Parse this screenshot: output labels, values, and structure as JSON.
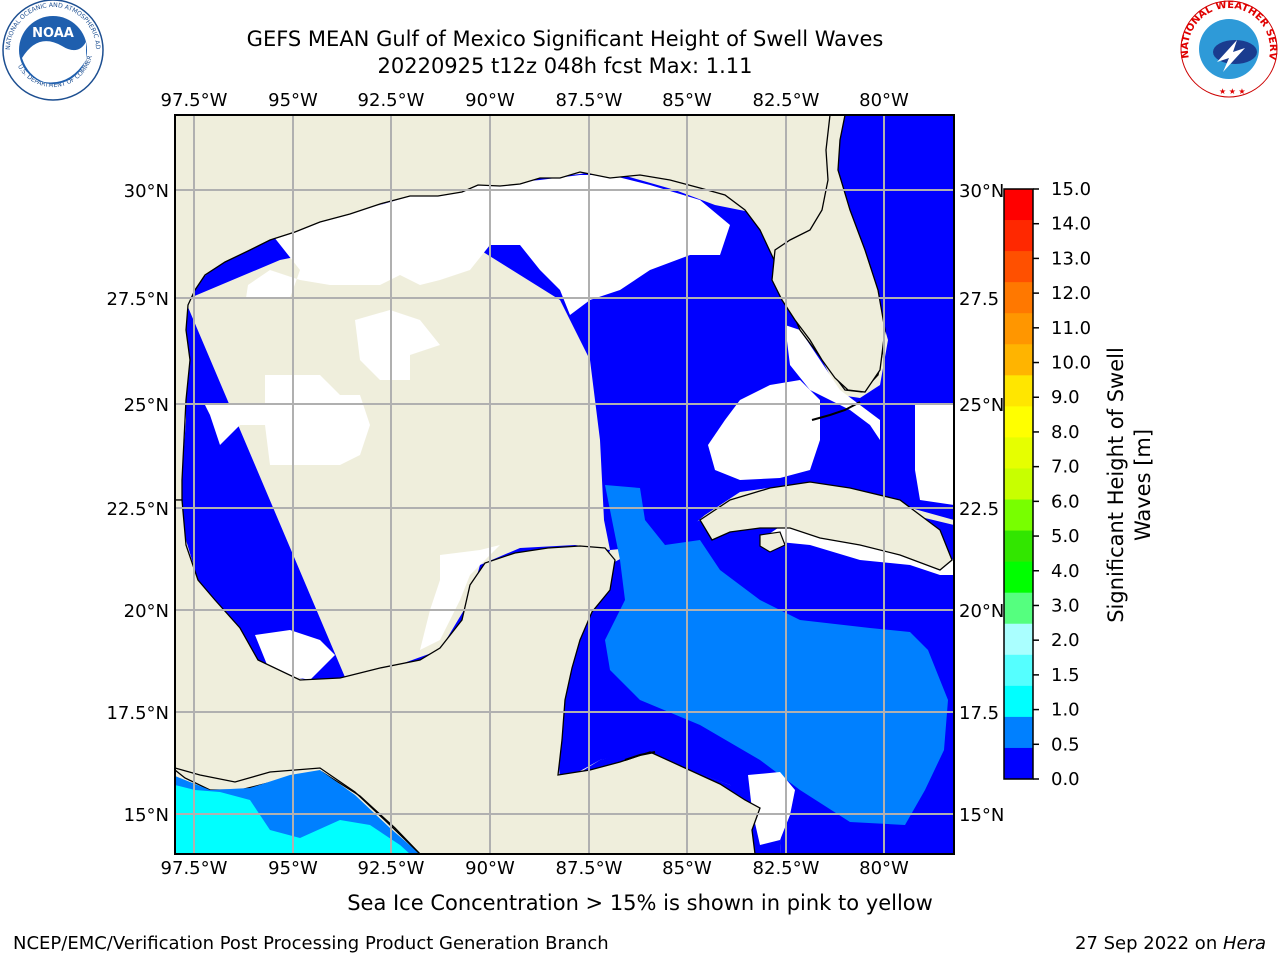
{
  "header": {
    "title_line1": "GEFS MEAN Gulf of Mexico Significant Height of Swell Waves",
    "title_line2": "20220925 t12z 048h fcst   Max: 1.11"
  },
  "logos": {
    "noaa_badge": "NOAA",
    "noaa_ring_top": "NATIONAL OCEANIC AND ATMOSPHERIC ADMINISTRATION",
    "noaa_ring_bottom": "U.S. DEPARTMENT OF COMMERCE",
    "nws_ring": "NATIONAL WEATHER SERVICE"
  },
  "map": {
    "lon_labels": [
      "97.5°W",
      "95°W",
      "92.5°W",
      "90°W",
      "87.5°W",
      "85°W",
      "82.5°W",
      "80°W"
    ],
    "lat_labels_left": [
      "30°N",
      "27.5°N",
      "25°N",
      "22.5°N",
      "20°N",
      "17.5°N",
      "15°N"
    ],
    "lat_labels_right": [
      "30°N",
      "27.5",
      "25°N",
      "22.5",
      "20°N",
      "17.5",
      "15°N"
    ],
    "colors": {
      "land": "#efeedc",
      "ocean_zero": "#ffffff",
      "level_0_0_5": "#0000ff",
      "level_0_5_1_0": "#0080ff",
      "level_1_0_1_5": "#00ffff"
    }
  },
  "colorbar": {
    "label": "Significant Height of Swell Waves [m]",
    "label_line1": "Significant Height of Swell",
    "label_line2": "Waves [m]",
    "ticks": [
      "15.0",
      "14.0",
      "13.0",
      "12.0",
      "11.0",
      "10.0",
      "9.0",
      "8.0",
      "7.0",
      "6.0",
      "5.0",
      "4.0",
      "3.0",
      "2.0",
      "1.5",
      "1.0",
      "0.5",
      "0.0"
    ],
    "colors": [
      "#ff0000",
      "#ff2800",
      "#ff5000",
      "#ff7800",
      "#ff9600",
      "#ffb400",
      "#ffe600",
      "#ffff00",
      "#e6ff00",
      "#c8ff00",
      "#78ff00",
      "#32e600",
      "#00ff00",
      "#55ff7f",
      "#aaffff",
      "#55ffff",
      "#00ffff",
      "#0080ff",
      "#0000ff"
    ]
  },
  "notes": {
    "sea_ice": "Sea Ice Concentration > 15% is shown in pink to yellow"
  },
  "footer": {
    "left": "NCEP/EMC/Verification Post Processing Product Generation Branch",
    "right_date": "27 Sep 2022 on ",
    "right_host": "Hera"
  }
}
